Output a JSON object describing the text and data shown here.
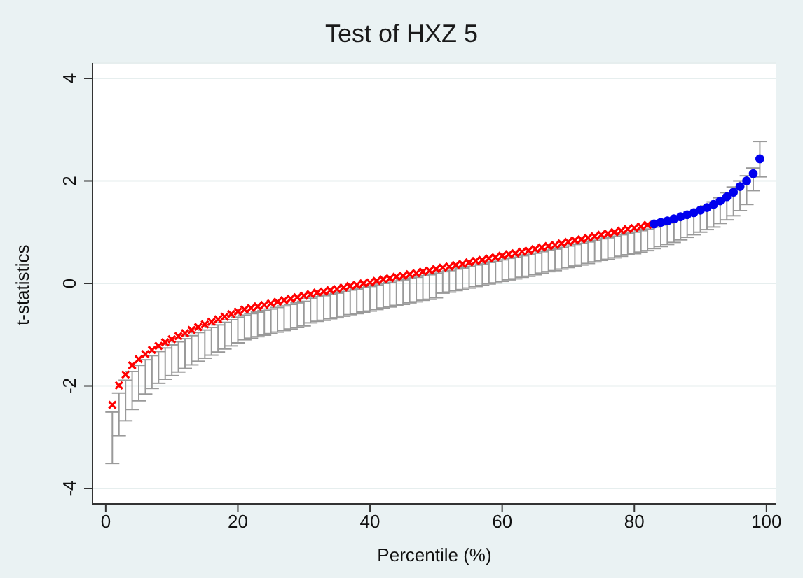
{
  "chart_data": {
    "type": "scatter",
    "title": "Test of HXZ 5",
    "xlabel": "Percentile (%)",
    "ylabel": "t-statistics",
    "xlim": [
      -2,
      101.5
    ],
    "xticks": [
      0,
      20,
      40,
      60,
      80,
      100
    ],
    "ylim": [
      -4.3,
      4.3
    ],
    "yticks": [
      -4,
      -2,
      0,
      2,
      4
    ],
    "grid": "y",
    "legend": false,
    "series": [
      {
        "color": "#ff0000",
        "marker": "cross",
        "x": [
          1,
          2,
          3,
          4,
          5,
          6,
          7,
          8,
          9,
          10,
          11,
          12,
          13,
          14,
          15,
          16,
          17,
          18,
          19,
          20,
          21,
          22,
          23,
          24,
          25,
          26,
          27,
          28,
          29,
          30,
          31,
          32,
          33,
          34,
          35,
          36,
          37,
          38,
          39,
          40,
          41,
          42,
          43,
          44,
          45,
          46,
          47,
          48,
          49,
          50,
          51,
          52,
          53,
          54,
          55,
          56,
          57,
          58,
          59,
          60,
          61,
          62,
          63,
          64,
          65,
          66,
          67,
          68,
          69,
          70,
          71,
          72,
          73,
          74,
          75,
          76,
          77,
          78,
          79,
          80,
          81,
          82
        ],
        "values": [
          -2.37,
          -1.99,
          -1.78,
          -1.6,
          -1.48,
          -1.38,
          -1.3,
          -1.22,
          -1.15,
          -1.09,
          -1.03,
          -0.97,
          -0.91,
          -0.85,
          -0.8,
          -0.75,
          -0.7,
          -0.65,
          -0.6,
          -0.55,
          -0.51,
          -0.48,
          -0.45,
          -0.42,
          -0.39,
          -0.36,
          -0.33,
          -0.3,
          -0.27,
          -0.24,
          -0.21,
          -0.18,
          -0.16,
          -0.13,
          -0.11,
          -0.08,
          -0.05,
          -0.03,
          0,
          0.02,
          0.05,
          0.08,
          0.1,
          0.13,
          0.15,
          0.18,
          0.2,
          0.23,
          0.25,
          0.28,
          0.31,
          0.33,
          0.36,
          0.38,
          0.41,
          0.44,
          0.46,
          0.49,
          0.51,
          0.54,
          0.57,
          0.59,
          0.62,
          0.64,
          0.67,
          0.7,
          0.73,
          0.75,
          0.78,
          0.81,
          0.84,
          0.86,
          0.89,
          0.92,
          0.95,
          0.97,
          1,
          1.03,
          1.06,
          1.08,
          1.11,
          1.14
        ],
        "errors": [
          [
            -3.51,
            -2.51
          ],
          [
            -2.97,
            -2.14
          ],
          [
            -2.68,
            -1.89
          ],
          [
            -2.46,
            -1.72
          ],
          [
            -2.29,
            -1.6
          ],
          [
            -2.16,
            -1.49
          ],
          [
            -2.05,
            -1.41
          ],
          [
            -1.95,
            -1.33
          ],
          [
            -1.87,
            -1.26
          ],
          [
            -1.8,
            -1.2
          ],
          [
            -1.73,
            -1.14
          ],
          [
            -1.66,
            -1.08
          ],
          [
            -1.59,
            -1.02
          ],
          [
            -1.52,
            -0.96
          ],
          [
            -1.46,
            -0.91
          ],
          [
            -1.4,
            -0.86
          ],
          [
            -1.34,
            -0.81
          ],
          [
            -1.28,
            -0.76
          ],
          [
            -1.22,
            -0.71
          ],
          [
            -1.16,
            -0.66
          ],
          [
            -1.1,
            -0.62
          ],
          [
            -1.07,
            -0.59
          ],
          [
            -1.04,
            -0.56
          ],
          [
            -1.01,
            -0.53
          ],
          [
            -0.98,
            -0.5
          ],
          [
            -0.95,
            -0.47
          ],
          [
            -0.92,
            -0.44
          ],
          [
            -0.89,
            -0.41
          ],
          [
            -0.86,
            -0.38
          ],
          [
            -0.83,
            -0.35
          ],
          [
            -0.77,
            -0.29
          ],
          [
            -0.74,
            -0.26
          ],
          [
            -0.72,
            -0.24
          ],
          [
            -0.69,
            -0.21
          ],
          [
            -0.67,
            -0.19
          ],
          [
            -0.64,
            -0.16
          ],
          [
            -0.61,
            -0.13
          ],
          [
            -0.59,
            -0.11
          ],
          [
            -0.56,
            -0.08
          ],
          [
            -0.54,
            -0.06
          ],
          [
            -0.51,
            -0.03
          ],
          [
            -0.48,
            0
          ],
          [
            -0.46,
            0.02
          ],
          [
            -0.43,
            0.05
          ],
          [
            -0.41,
            0.07
          ],
          [
            -0.38,
            0.1
          ],
          [
            -0.36,
            0.12
          ],
          [
            -0.33,
            0.15
          ],
          [
            -0.31,
            0.17
          ],
          [
            -0.28,
            0.2
          ],
          [
            -0.19,
            0.23
          ],
          [
            -0.17,
            0.25
          ],
          [
            -0.14,
            0.28
          ],
          [
            -0.12,
            0.3
          ],
          [
            -0.09,
            0.33
          ],
          [
            -0.06,
            0.36
          ],
          [
            -0.04,
            0.38
          ],
          [
            -0.01,
            0.41
          ],
          [
            0.01,
            0.43
          ],
          [
            0.04,
            0.46
          ],
          [
            0.07,
            0.49
          ],
          [
            0.09,
            0.51
          ],
          [
            0.12,
            0.54
          ],
          [
            0.14,
            0.56
          ],
          [
            0.17,
            0.59
          ],
          [
            0.2,
            0.62
          ],
          [
            0.23,
            0.65
          ],
          [
            0.25,
            0.67
          ],
          [
            0.28,
            0.7
          ],
          [
            0.31,
            0.73
          ],
          [
            0.34,
            0.76
          ],
          [
            0.36,
            0.78
          ],
          [
            0.39,
            0.81
          ],
          [
            0.42,
            0.84
          ],
          [
            0.45,
            0.87
          ],
          [
            0.47,
            0.89
          ],
          [
            0.5,
            0.92
          ],
          [
            0.53,
            0.95
          ],
          [
            0.56,
            0.98
          ],
          [
            0.58,
            1
          ],
          [
            0.61,
            1.03
          ],
          [
            0.64,
            1.06
          ]
        ]
      },
      {
        "color": "#0000ee",
        "marker": "circle",
        "x": [
          83,
          84,
          85,
          86,
          87,
          88,
          89,
          90,
          91,
          92,
          93,
          94,
          95,
          96,
          97,
          98,
          99
        ],
        "values": [
          1.16,
          1.19,
          1.22,
          1.26,
          1.3,
          1.34,
          1.38,
          1.43,
          1.48,
          1.54,
          1.61,
          1.69,
          1.78,
          1.89,
          2,
          2.14,
          2.43
        ],
        "errors": [
          [
            0.68,
            1.1
          ],
          [
            0.72,
            1.14
          ],
          [
            0.76,
            1.18
          ],
          [
            0.8,
            1.23
          ],
          [
            0.85,
            1.28
          ],
          [
            0.9,
            1.33
          ],
          [
            0.95,
            1.38
          ],
          [
            1,
            1.45
          ],
          [
            1.05,
            1.51
          ],
          [
            1.1,
            1.59
          ],
          [
            1.17,
            1.67
          ],
          [
            1.24,
            1.77
          ],
          [
            1.32,
            1.88
          ],
          [
            1.42,
            2
          ],
          [
            1.54,
            2.1
          ],
          [
            1.81,
            2.25
          ],
          [
            2.08,
            2.77
          ]
        ]
      }
    ]
  }
}
